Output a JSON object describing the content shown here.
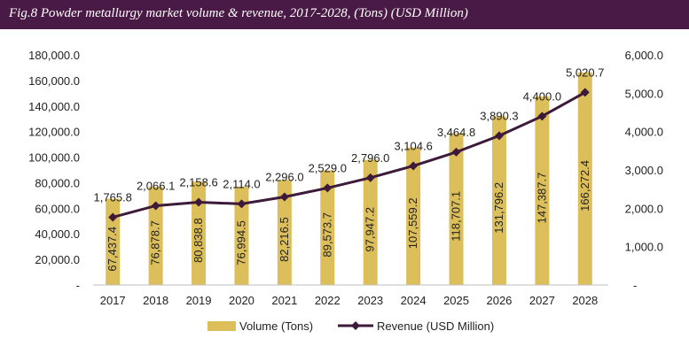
{
  "header": {
    "title": "Fig.8  Powder metallurgy market volume & revenue, 2017-2028, (Tons) (USD Million)"
  },
  "colors": {
    "header_bg": "#4a1a46",
    "bar": "#dcbf5a",
    "line": "#3d1a3a"
  },
  "chart_data": {
    "type": "bar",
    "title": "Fig.8  Powder metallurgy market volume & revenue, 2017-2028, (Tons) (USD Million)",
    "categories": [
      "2017",
      "2018",
      "2019",
      "2020",
      "2021",
      "2022",
      "2023",
      "2024",
      "2025",
      "2026",
      "2027",
      "2028"
    ],
    "series": [
      {
        "name": "Volume (Tons)",
        "type": "bar",
        "axis": "left",
        "values": [
          67437.4,
          76878.7,
          80838.8,
          76994.5,
          82216.5,
          89573.7,
          97947.2,
          107559.2,
          118707.1,
          131796.2,
          147387.7,
          166272.4
        ],
        "labels": [
          "67,437.4",
          "76,878.7",
          "80,838.8",
          "76,994.5",
          "82,216.5",
          "89,573.7",
          "97,947.2",
          "107,559.2",
          "118,707.1",
          "131,796.2",
          "147,387.7",
          "166,272.4"
        ]
      },
      {
        "name": "Revenue (USD Million)",
        "type": "line",
        "axis": "right",
        "values": [
          1765.8,
          2066.1,
          2158.6,
          2114.0,
          2296.0,
          2529.0,
          2796.0,
          3104.6,
          3464.8,
          3890.3,
          4400.0,
          5020.7
        ],
        "labels": [
          "1,765.8",
          "2,066.1",
          "2,158.6",
          "2,114.0",
          "2,296.0",
          "2,529.0",
          "2,796.0",
          "3,104.6",
          "3,464.8",
          "3,890.3",
          "4,400.0",
          "5,020.7"
        ]
      }
    ],
    "y_left": {
      "ylim": [
        0,
        180000
      ],
      "ticks": [
        0,
        20000,
        40000,
        60000,
        80000,
        100000,
        120000,
        140000,
        160000,
        180000
      ],
      "tick_labels": [
        "-",
        "20,000.0",
        "40,000.0",
        "60,000.0",
        "80,000.0",
        "100,000.0",
        "120,000.0",
        "140,000.0",
        "160,000.0",
        "180,000.0"
      ]
    },
    "y_right": {
      "ylim": [
        0,
        6000
      ],
      "ticks": [
        0,
        1000,
        2000,
        3000,
        4000,
        5000,
        6000
      ],
      "tick_labels": [
        "-",
        "1,000.0",
        "2,000.0",
        "3,000.0",
        "4,000.0",
        "5,000.0",
        "6,000.0"
      ]
    },
    "grid": false,
    "legend": {
      "position": "bottom",
      "entries": [
        "Volume (Tons)",
        "Revenue (USD Million)"
      ]
    }
  }
}
